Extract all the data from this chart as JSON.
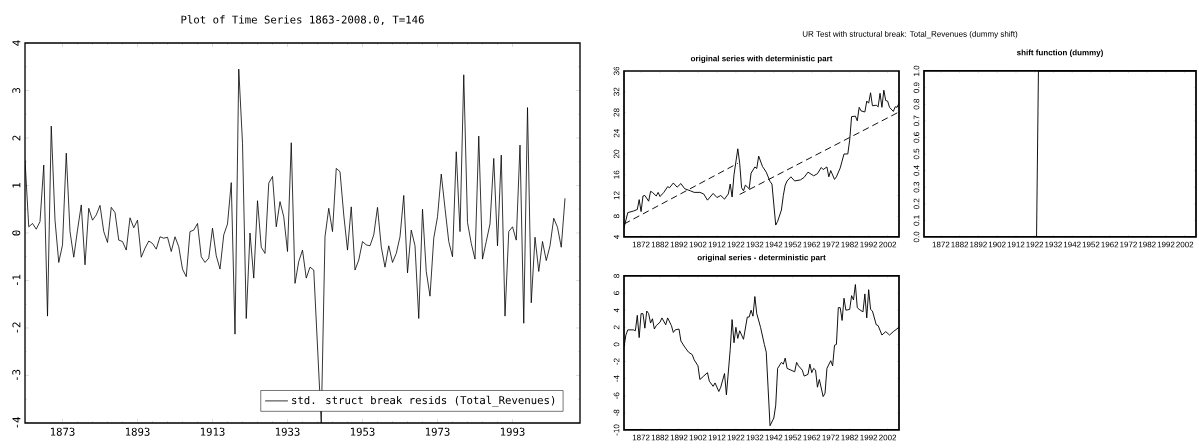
{
  "chart_data": [
    {
      "type": "line",
      "title": "Plot of Time Series 1863-2008.0, T=146",
      "xlim": [
        1863,
        2011
      ],
      "ylim": [
        -4,
        4
      ],
      "xticks": [
        1873,
        1893,
        1913,
        1933,
        1953,
        1973,
        1993
      ],
      "yticks": [
        -4,
        -3,
        -2,
        -1,
        0,
        1,
        2,
        3,
        4
      ],
      "legend": "bottom right",
      "grid": false,
      "series": [
        {
          "name": "std. struct break resids (Total_Revenues)",
          "color": "#000000",
          "x": [
            1863,
            1864,
            1865,
            1866,
            1867,
            1868,
            1869,
            1870,
            1871,
            1872,
            1873,
            1874,
            1875,
            1876,
            1877,
            1878,
            1879,
            1880,
            1881,
            1882,
            1883,
            1884,
            1885,
            1886,
            1887,
            1888,
            1889,
            1890,
            1891,
            1892,
            1893,
            1894,
            1895,
            1896,
            1897,
            1898,
            1899,
            1900,
            1901,
            1902,
            1903,
            1904,
            1905,
            1906,
            1907,
            1908,
            1909,
            1910,
            1911,
            1912,
            1913,
            1914,
            1915,
            1916,
            1917,
            1918,
            1919,
            1920,
            1921,
            1922,
            1923,
            1924,
            1925,
            1926,
            1927,
            1928,
            1929,
            1930,
            1931,
            1932,
            1933,
            1934,
            1935,
            1936,
            1937,
            1938,
            1939,
            1940,
            1942,
            1943,
            1944,
            1945,
            1946,
            1947,
            1948,
            1949,
            1950,
            1951,
            1952,
            1953,
            1954,
            1955,
            1956,
            1957,
            1958,
            1959,
            1960,
            1961,
            1962,
            1963,
            1964,
            1965,
            1966,
            1967,
            1968,
            1969,
            1970,
            1971,
            1972,
            1973,
            1974,
            1975,
            1976,
            1977,
            1978,
            1979,
            1980,
            1981,
            1982,
            1983,
            1984,
            1985,
            1986,
            1987,
            1988,
            1989,
            1990,
            1991,
            1992,
            1993,
            1994,
            1995,
            1996,
            1997,
            1998,
            1999,
            2000,
            2001,
            2002,
            2003,
            2004,
            2005,
            2006,
            2007
          ],
          "values": [
            1.54,
            0.13,
            0.2,
            0.08,
            0.24,
            1.43,
            -1.75,
            2.25,
            0.27,
            -0.62,
            -0.25,
            1.68,
            0.03,
            -0.51,
            0.06,
            0.59,
            -0.67,
            0.52,
            0.27,
            0.38,
            0.58,
            0.03,
            -0.2,
            0.54,
            0.43,
            -0.15,
            -0.18,
            -0.36,
            0.32,
            0.11,
            0.27,
            -0.51,
            -0.32,
            -0.17,
            -0.22,
            -0.34,
            -0.08,
            -0.11,
            -0.09,
            -0.39,
            -0.08,
            -0.29,
            -0.76,
            -0.92,
            0.03,
            0.06,
            0.2,
            -0.5,
            -0.62,
            -0.53,
            0.1,
            -0.48,
            -0.76,
            -0.04,
            0.19,
            1.06,
            -2.13,
            3.45,
            1.89,
            -1.8,
            0.0,
            -0.95,
            0.68,
            -0.3,
            -0.43,
            1.05,
            1.19,
            0.13,
            0.66,
            0.34,
            -0.39,
            1.9,
            -1.06,
            -0.6,
            -0.36,
            -0.95,
            -0.72,
            -0.78,
            -4.0,
            -0.08,
            0.52,
            0.03,
            1.36,
            1.29,
            0.38,
            -0.36,
            0.55,
            -0.78,
            -0.57,
            -0.18,
            -0.25,
            -0.27,
            -0.04,
            0.54,
            -0.29,
            -0.72,
            -0.27,
            -0.62,
            -0.43,
            -0.08,
            0.79,
            -0.84,
            0.06,
            -0.27,
            -1.8,
            0.5,
            -0.81,
            -1.33,
            -0.11,
            0.34,
            1.24,
            0.52,
            -0.18,
            -0.5,
            1.71,
            0.03,
            3.33,
            0.22,
            -0.22,
            -0.55,
            2.04,
            -0.55,
            -0.18,
            0.19,
            1.57,
            -0.27,
            1.64,
            -1.75,
            0.03,
            0.13,
            -0.15,
            1.85,
            -1.9,
            2.64,
            -1.47,
            -0.09,
            -0.81,
            -0.18,
            -0.58,
            -0.27,
            0.31,
            0.12,
            -0.3,
            0.73
          ]
        }
      ]
    },
    {
      "type": "line",
      "title": "UR Test with structural break: Total_Revenues (dummy shift)",
      "subtitle": "original series with deterministic part",
      "xlim": [
        1863,
        2008
      ],
      "ylim": [
        4,
        36
      ],
      "xticks": [
        1872,
        1882,
        1892,
        1902,
        1912,
        1922,
        1932,
        1942,
        1952,
        1962,
        1972,
        1982,
        1992,
        2002
      ],
      "yticks": [
        4,
        8,
        12,
        16,
        20,
        24,
        28,
        32,
        36
      ],
      "grid": false,
      "series": [
        {
          "color": "#000000",
          "line_style": "solid",
          "x": [
            1863,
            1865,
            1868,
            1870,
            1871,
            1872,
            1873,
            1874,
            1876,
            1877,
            1878,
            1880,
            1881,
            1882,
            1884,
            1886,
            1887,
            1889,
            1891,
            1893,
            1895,
            1898,
            1900,
            1903,
            1905,
            1907,
            1910,
            1912,
            1914,
            1916,
            1918,
            1919,
            1920,
            1921,
            1923,
            1924,
            1925,
            1926,
            1927,
            1929,
            1930,
            1932,
            1933,
            1934,
            1936,
            1938,
            1940,
            1941,
            1943,
            1944,
            1946,
            1947,
            1948,
            1949,
            1951,
            1953,
            1956,
            1958,
            1960,
            1963,
            1965,
            1967,
            1968,
            1970,
            1971,
            1972,
            1974,
            1975,
            1977,
            1979,
            1981,
            1982,
            1983,
            1985,
            1986,
            1987,
            1988,
            1990,
            1991,
            1992,
            1993,
            1994,
            1996,
            1997,
            1998,
            1999,
            2000,
            2001,
            2002,
            2003,
            2005,
            2006,
            2007,
            2008
          ],
          "values": [
            5.8,
            8.7,
            9.0,
            9.3,
            11.2,
            8.9,
            11.9,
            12.0,
            10.9,
            12.8,
            12.6,
            11.9,
            12.6,
            11.8,
            12.6,
            13.7,
            13.5,
            14.4,
            13.6,
            14.3,
            13.3,
            12.9,
            12.6,
            12.6,
            12.3,
            11.1,
            12.4,
            11.6,
            12.0,
            11.3,
            12.3,
            14.2,
            11.7,
            16.0,
            21.0,
            18.2,
            13.5,
            12.9,
            14.0,
            13.3,
            16.3,
            17.5,
            17.2,
            19.6,
            17.6,
            16.5,
            14.7,
            14.2,
            6.3,
            7.0,
            9.2,
            12.0,
            14.0,
            14.8,
            15.6,
            14.8,
            15.0,
            15.5,
            16.5,
            15.8,
            16.2,
            17.4,
            17.0,
            17.5,
            15.6,
            16.8,
            15.1,
            15.6,
            17.3,
            20.0,
            20.0,
            22.7,
            27.2,
            27.3,
            26.4,
            29.0,
            28.3,
            28.1,
            30.2,
            29.8,
            31.8,
            29.3,
            29.4,
            29.1,
            31.7,
            29.0,
            32.3,
            30.3,
            30.2,
            29.0,
            28.2,
            29.1,
            29.0,
            29.8
          ]
        },
        {
          "color": "#000000",
          "line_style": "dashed",
          "x": [
            1863,
            1923
          ],
          "values": [
            6.5,
            18.2
          ]
        },
        {
          "color": "#000000",
          "line_style": "dashed",
          "x": [
            1924,
            2008
          ],
          "values": [
            12.2,
            28.1
          ]
        }
      ]
    },
    {
      "type": "line",
      "title": "shift function (dummy)",
      "xlim": [
        1863,
        2008
      ],
      "ylim": [
        0,
        1
      ],
      "xticks": [
        1872,
        1882,
        1892,
        1902,
        1912,
        1922,
        1932,
        1942,
        1952,
        1962,
        1972,
        1982,
        1992,
        2002
      ],
      "yticks": [
        {
          "value": 0,
          "label": "0.0"
        },
        0.1,
        0.2,
        0.3,
        0.4,
        0.5,
        0.6,
        0.7,
        0.8,
        0.9,
        {
          "value": 1,
          "label": "1.0"
        }
      ],
      "grid": false,
      "series": [
        {
          "color": "#000000",
          "x": [
            1863,
            1923,
            1924,
            2008
          ],
          "values": [
            0,
            0,
            1,
            1
          ]
        }
      ]
    },
    {
      "type": "line",
      "title": "original series - deterministic part",
      "xlim": [
        1863,
        2008
      ],
      "ylim": [
        -10,
        8
      ],
      "xticks": [
        1872,
        1882,
        1892,
        1902,
        1912,
        1922,
        1932,
        1942,
        1952,
        1962,
        1972,
        1982,
        1992,
        2002
      ],
      "yticks": [
        -10,
        -8,
        -6,
        -4,
        -2,
        0,
        2,
        4,
        6,
        8
      ],
      "grid": false,
      "series": [
        {
          "color": "#000000",
          "x": [
            1863,
            1864,
            1865,
            1868,
            1869,
            1870,
            1871,
            1872,
            1873,
            1874,
            1875,
            1876,
            1877,
            1878,
            1879,
            1880,
            1882,
            1883,
            1885,
            1886,
            1888,
            1889,
            1890,
            1892,
            1893,
            1895,
            1897,
            1899,
            1900,
            1902,
            1903,
            1905,
            1907,
            1908,
            1910,
            1911,
            1913,
            1914,
            1916,
            1917,
            1919,
            1920,
            1921,
            1922,
            1923,
            1924,
            1926,
            1928,
            1929,
            1930,
            1931,
            1932,
            1933,
            1935,
            1937,
            1938,
            1940,
            1942,
            1943,
            1944,
            1946,
            1947,
            1948,
            1949,
            1951,
            1953,
            1954,
            1955,
            1957,
            1958,
            1960,
            1961,
            1962,
            1963,
            1964,
            1965,
            1966,
            1968,
            1969,
            1970,
            1972,
            1973,
            1974,
            1975,
            1976,
            1977,
            1978,
            1979,
            1980,
            1982,
            1983,
            1984,
            1985,
            1986,
            1987,
            1989,
            1990,
            1991,
            1992,
            1993,
            1994,
            1996,
            1997,
            1999,
            2001,
            2003,
            2005,
            2008
          ],
          "values": [
            -0.3,
            1.1,
            1.7,
            1.7,
            1.6,
            3.4,
            0.8,
            3.6,
            3.6,
            1.9,
            3.9,
            3.6,
            2.5,
            3.0,
            1.8,
            2.2,
            2.6,
            3.1,
            2.3,
            3.1,
            2.2,
            1.4,
            1.7,
            1.8,
            0.4,
            -0.3,
            -0.9,
            -1.2,
            -1.8,
            -2.5,
            -4.1,
            -3.7,
            -3.3,
            -4.3,
            -4.9,
            -4.5,
            -5.5,
            -5.0,
            -3.4,
            -5.9,
            -0.6,
            2.9,
            0.2,
            2.0,
            0.7,
            1.6,
            0.6,
            3.2,
            3.2,
            4.0,
            3.3,
            5.6,
            3.6,
            2.0,
            0.0,
            -0.9,
            -9.5,
            -8.6,
            -7.1,
            -2.8,
            -2.1,
            -2.3,
            -1.6,
            -2.8,
            -3.0,
            -3.2,
            -2.1,
            -2.5,
            -3.0,
            -3.7,
            -3.5,
            -2.3,
            -3.3,
            -2.8,
            -3.0,
            -5.0,
            -4.1,
            -6.1,
            -5.7,
            -2.8,
            -1.9,
            -2.5,
            -0.1,
            0.0,
            4.3,
            4.3,
            2.8,
            5.4,
            4.0,
            4.1,
            5.7,
            5.2,
            7.0,
            4.3,
            4.1,
            3.8,
            5.9,
            3.1,
            6.4,
            4.1,
            3.9,
            2.3,
            2.2,
            1.1,
            1.5,
            1.1,
            1.5,
            2.0
          ]
        }
      ]
    }
  ]
}
